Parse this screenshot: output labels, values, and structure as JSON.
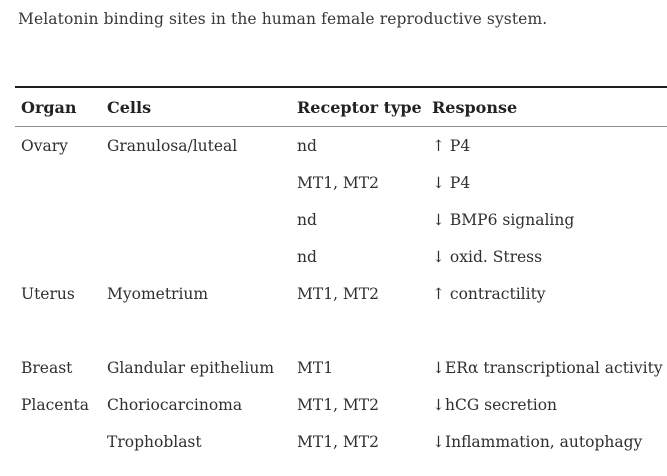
{
  "caption": "Melatonin binding sites in the human female reproductive system.",
  "table": {
    "columns": [
      "Organ",
      "Cells",
      "Receptor type",
      "Response"
    ],
    "rows": [
      [
        "Ovary",
        "Granulosa/luteal",
        "nd",
        "↑ P4"
      ],
      [
        "",
        "",
        "MT1, MT2",
        "↓ P4"
      ],
      [
        "",
        "",
        "nd",
        "↓ BMP6 signaling"
      ],
      [
        "",
        "",
        "nd",
        "↓ oxid. Stress"
      ],
      [
        "Uterus",
        "Myometrium",
        "MT1, MT2",
        "↑ contractility"
      ],
      [
        "",
        "",
        "",
        ""
      ],
      [
        "Breast",
        "Glandular epithelium",
        "MT1",
        "↓ERα transcriptional activity"
      ],
      [
        "Placenta",
        "Choriocarcinoma",
        "MT1, MT2",
        "↓hCG secretion"
      ],
      [
        "",
        "Trophoblast",
        "MT1, MT2",
        "↓Inflammation, autophagy"
      ]
    ],
    "colors": {
      "text": "#2f2f2f",
      "heavy_rule": "#1d1d1d",
      "light_rule": "#8c8c8c",
      "background": "#ffffff"
    }
  }
}
